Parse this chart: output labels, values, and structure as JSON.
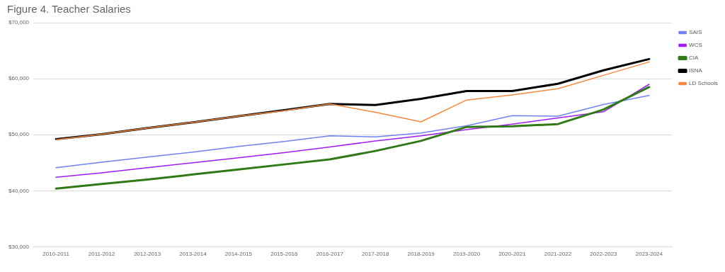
{
  "chart_data": {
    "type": "line",
    "title": "Figure 4. Teacher Salaries",
    "categories": [
      "2010-2011",
      "2011-2012",
      "2012-2013",
      "2013-2014",
      "2014-2015",
      "2015-2016",
      "2016-2017",
      "2017-2018",
      "2018-2019",
      "2019-2020",
      "2020-2021",
      "2021-2022",
      "2022-2023",
      "2023-2024"
    ],
    "series": [
      {
        "name": "SAIS",
        "color": "#6f82f2",
        "values": [
          44100,
          45100,
          46000,
          46900,
          47900,
          48800,
          49800,
          49600,
          50300,
          51600,
          53400,
          53300,
          55400,
          57000
        ]
      },
      {
        "name": "WCS",
        "color": "#a01cf5",
        "values": [
          42400,
          43200,
          44100,
          45000,
          45900,
          46800,
          47800,
          48900,
          49800,
          50900,
          51900,
          53000,
          54100,
          59000
        ]
      },
      {
        "name": "CIA",
        "color": "#2f7a17",
        "values": [
          40400,
          41200,
          42000,
          42900,
          43800,
          44700,
          45600,
          47100,
          48900,
          51400,
          51500,
          51900,
          54500,
          58500
        ]
      },
      {
        "name": "ISNA",
        "color": "#000000",
        "values": [
          49200,
          50100,
          51200,
          52200,
          53300,
          54400,
          55500,
          55300,
          56400,
          57800,
          57800,
          59100,
          61500,
          63500
        ]
      },
      {
        "name": "LD Schools",
        "color": "#f5883c",
        "values": [
          49100,
          50100,
          51200,
          52200,
          53300,
          54300,
          55500,
          54000,
          52300,
          56200,
          57100,
          58200,
          60600,
          63000
        ]
      }
    ],
    "ylim": [
      30000,
      70000
    ],
    "yticks": [
      {
        "value": 30000,
        "label": "$30,000"
      },
      {
        "value": 40000,
        "label": "$40,000"
      },
      {
        "value": 50000,
        "label": "$50,000"
      },
      {
        "value": 60000,
        "label": "$60,000"
      },
      {
        "value": 70000,
        "label": "$70,000"
      }
    ],
    "grid": "y",
    "legend": "top right",
    "marker": "none",
    "line_style": "solid"
  }
}
